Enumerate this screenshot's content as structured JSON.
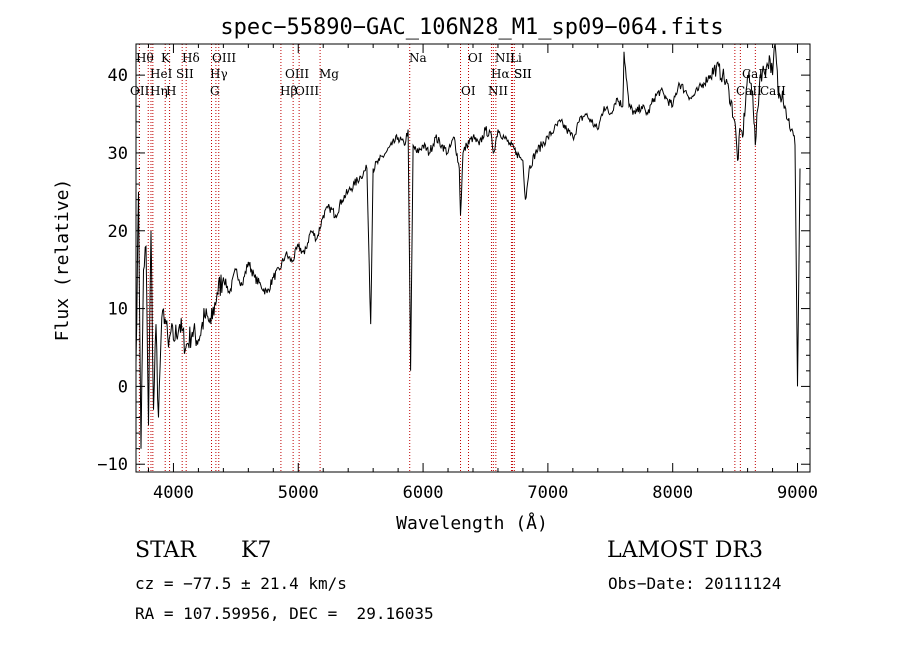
{
  "chart_data": {
    "type": "line",
    "title": "spec−55890−GAC_106N28_M1_sp09−064.fits",
    "xlabel": "Wavelength (Å)",
    "ylabel": "Flux (relative)",
    "xlim": [
      3700,
      9100
    ],
    "ylim": [
      -11,
      44
    ],
    "x_ticks": [
      4000,
      5000,
      6000,
      7000,
      8000,
      9000
    ],
    "x_tick_labels": [
      "4000",
      "5000",
      "6000",
      "7000",
      "8000",
      "9000"
    ],
    "y_ticks": [
      -10,
      0,
      10,
      20,
      30,
      40
    ],
    "y_tick_labels": [
      "−10",
      "0",
      "10",
      "20",
      "30",
      "40"
    ],
    "grid": false,
    "series": [
      {
        "name": "flux",
        "x": [
          3700,
          3720,
          3740,
          3760,
          3780,
          3800,
          3820,
          3840,
          3860,
          3880,
          3900,
          3920,
          3940,
          3960,
          3980,
          4000,
          4050,
          4100,
          4150,
          4200,
          4250,
          4300,
          4350,
          4400,
          4450,
          4500,
          4550,
          4600,
          4650,
          4700,
          4750,
          4800,
          4850,
          4900,
          4950,
          5000,
          5050,
          5100,
          5150,
          5200,
          5250,
          5300,
          5350,
          5400,
          5450,
          5500,
          5550,
          5580,
          5600,
          5650,
          5700,
          5750,
          5800,
          5850,
          5880,
          5900,
          5920,
          5950,
          6000,
          6050,
          6100,
          6150,
          6200,
          6250,
          6290,
          6300,
          6320,
          6350,
          6400,
          6450,
          6500,
          6550,
          6563,
          6600,
          6650,
          6700,
          6750,
          6800,
          6820,
          6850,
          6900,
          6950,
          7000,
          7050,
          7100,
          7150,
          7200,
          7250,
          7300,
          7350,
          7400,
          7450,
          7500,
          7550,
          7600,
          7610,
          7650,
          7700,
          7750,
          7800,
          7850,
          7900,
          7950,
          8000,
          8050,
          8100,
          8150,
          8200,
          8250,
          8300,
          8350,
          8400,
          8450,
          8498,
          8520,
          8542,
          8560,
          8600,
          8640,
          8662,
          8700,
          8750,
          8780,
          8800,
          8820,
          8850,
          8880,
          8900,
          8950,
          8980,
          9000,
          9020
        ],
        "y": [
          3,
          25,
          -8,
          15,
          18,
          -5,
          20,
          -3,
          8,
          -4,
          6,
          10,
          8,
          5,
          7,
          6,
          8,
          5,
          7,
          6,
          9,
          8,
          12,
          14,
          12,
          15,
          13,
          16,
          14,
          13,
          12,
          14,
          15,
          17,
          16,
          18,
          17,
          20,
          19,
          22,
          23,
          22,
          24,
          25,
          26,
          27,
          28,
          8,
          28,
          29,
          30,
          31,
          32,
          31,
          33,
          2,
          31,
          30,
          31,
          30,
          32,
          31,
          30,
          32,
          28,
          22,
          30,
          31,
          32,
          31,
          33,
          32,
          30,
          33,
          32,
          31,
          30,
          29,
          24,
          28,
          30,
          31,
          32,
          33,
          34,
          33,
          32,
          34,
          35,
          34,
          33,
          36,
          35,
          37,
          36,
          43,
          36,
          35,
          36,
          35,
          37,
          38,
          37,
          36,
          39,
          38,
          37,
          38,
          39,
          40,
          41,
          40,
          38,
          34,
          29,
          33,
          32,
          40,
          38,
          31,
          40,
          41,
          42,
          40,
          44,
          37,
          38,
          36,
          33,
          31,
          0,
          28
        ]
      }
    ],
    "line_markers": [
      {
        "label": "Hθ",
        "x": 3798
      },
      {
        "label": "OII",
        "x": 3727
      },
      {
        "label": "HeI",
        "x": 3820
      },
      {
        "label": "Hη",
        "x": 3835
      },
      {
        "label": "K",
        "x": 3934
      },
      {
        "label": "H",
        "x": 3969
      },
      {
        "label": "Hδ",
        "x": 4102
      },
      {
        "label": "SII",
        "x": 4070
      },
      {
        "label": "OIII",
        "x": 4363
      },
      {
        "label": "Hγ",
        "x": 4340
      },
      {
        "label": "G",
        "x": 4305
      },
      {
        "label": "Hβ",
        "x": 4861
      },
      {
        "label": "OIII",
        "x": 4959
      },
      {
        "label": "OIII",
        "x": 5007
      },
      {
        "label": "Mg",
        "x": 5175
      },
      {
        "label": "Na",
        "x": 5893
      },
      {
        "label": "OI",
        "x": 6300
      },
      {
        "label": "OI",
        "x": 6364
      },
      {
        "label": "Hα",
        "x": 6563
      },
      {
        "label": "NII",
        "x": 6548
      },
      {
        "label": "NII",
        "x": 6583
      },
      {
        "label": "SII",
        "x": 6716
      },
      {
        "label": "SII",
        "x": 6731
      },
      {
        "label": "Li",
        "x": 6708
      },
      {
        "label": "CaII",
        "x": 8498
      },
      {
        "label": "CaII",
        "x": 8542
      },
      {
        "label": "CaII",
        "x": 8662
      }
    ]
  },
  "info": {
    "object_class": "STAR",
    "subclass": "K7",
    "survey": "LAMOST DR3",
    "cz": "cz = −77.5 ± 21.4 km/s",
    "obs_date": "Obs−Date: 20111124",
    "coords": "RA = 107.59956, DEC =  29.16035"
  },
  "colors": {
    "spectrum": "#000000",
    "markers": "#c00000",
    "axes": "#000000",
    "background": "#ffffff"
  }
}
